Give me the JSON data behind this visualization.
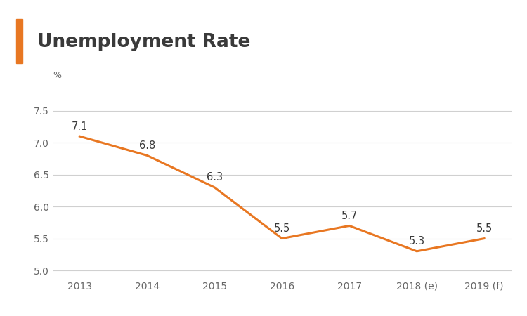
{
  "title": "Unemployment Rate",
  "ylabel": "%",
  "categories": [
    "2013",
    "2014",
    "2015",
    "2016",
    "2017",
    "2018 (e)",
    "2019 (f)"
  ],
  "values": [
    7.1,
    6.8,
    6.3,
    5.5,
    5.7,
    5.3,
    5.5
  ],
  "line_color": "#E87722",
  "title_color": "#3a3a3a",
  "label_color": "#666666",
  "accent_bar_color": "#E87722",
  "background_color": "#ffffff",
  "grid_color": "#d0d0d0",
  "ylim": [
    4.88,
    7.75
  ],
  "yticks": [
    5.0,
    5.5,
    6.0,
    6.5,
    7.0,
    7.5
  ],
  "title_fontsize": 19,
  "pct_fontsize": 9,
  "tick_fontsize": 10,
  "data_label_fontsize": 10.5,
  "line_width": 2.2
}
